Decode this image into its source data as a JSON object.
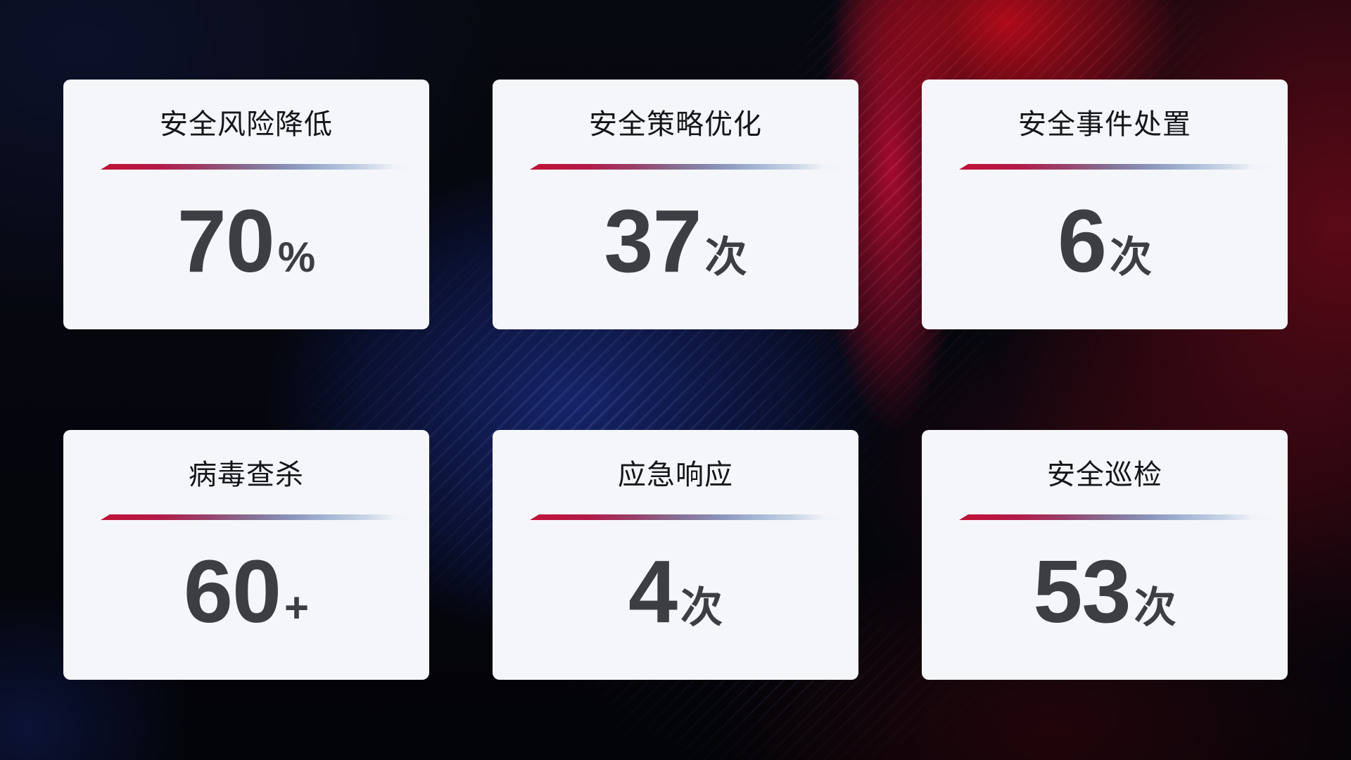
{
  "cards": [
    {
      "title": "安全风险降低",
      "value": "70",
      "unit": "%"
    },
    {
      "title": "安全策略优化",
      "value": "37",
      "unit": "次"
    },
    {
      "title": "安全事件处置",
      "value": "6",
      "unit": "次"
    },
    {
      "title": "病毒查杀",
      "value": "60",
      "unit": "+"
    },
    {
      "title": "应急响应",
      "value": "4",
      "unit": "次"
    },
    {
      "title": "安全巡检",
      "value": "53",
      "unit": "次"
    }
  ],
  "colors": {
    "card_background": "#f5f6f9",
    "title_text": "#15161a",
    "value_text": "#3d3e43",
    "divider_gradient_start": "#c11236",
    "divider_gradient_end": "#ccd7e8",
    "background_blue": "#17266f",
    "background_red": "#a10c22",
    "background_base": "#05060d"
  }
}
